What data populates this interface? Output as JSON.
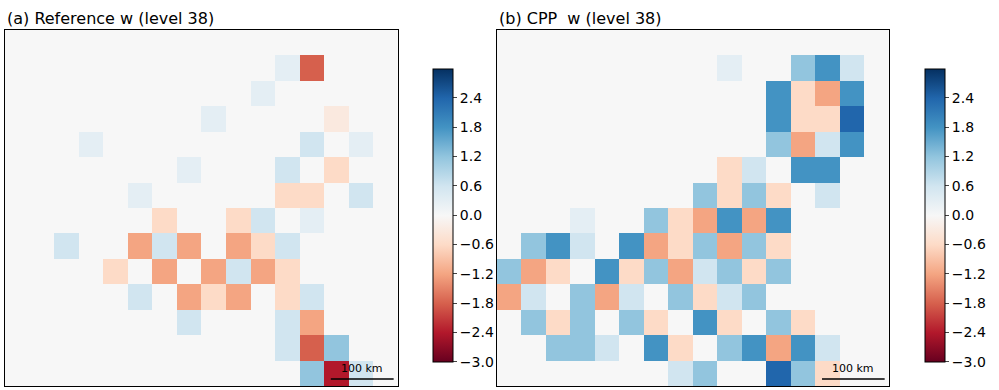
{
  "chart_data": [
    {
      "type": "heatmap",
      "title": "(a) Reference w (level 38)",
      "tick_labels": false,
      "annotations": [
        "100 km"
      ],
      "zlim": [
        -3,
        3
      ],
      "colorbar_ticks": [
        {
          "value": -3,
          "label": "−3.0"
        },
        {
          "value": -2.4,
          "label": "−2.4"
        },
        {
          "value": -1.8,
          "label": "−1.8"
        },
        {
          "value": -1.2,
          "label": "−1.2"
        },
        {
          "value": -0.6,
          "label": "−0.6"
        },
        {
          "value": 0,
          "label": "0.0"
        },
        0.6,
        1.2,
        1.8,
        2.4
      ],
      "z": [
        [
          0,
          0,
          0,
          0,
          0,
          0,
          0,
          0,
          0,
          0,
          0,
          0,
          0,
          0,
          0,
          0
        ],
        [
          0,
          0,
          0,
          0,
          0,
          0,
          0,
          0,
          0,
          0,
          0,
          0.3,
          -1.8,
          0,
          0,
          0
        ],
        [
          0,
          0,
          0,
          0,
          0,
          0,
          0,
          0,
          0,
          0,
          0.3,
          0,
          0,
          0,
          0,
          0
        ],
        [
          0,
          0,
          0,
          0,
          0,
          0,
          0,
          0,
          0.3,
          0,
          0,
          0,
          0,
          -0.3,
          0,
          0
        ],
        [
          0,
          0,
          0,
          0.3,
          0,
          0,
          0,
          0,
          0,
          0,
          0,
          0,
          0.6,
          0,
          0.3,
          0
        ],
        [
          0,
          0,
          0,
          0,
          0,
          0,
          0,
          0.3,
          0,
          0,
          0,
          0.6,
          0,
          -0.6,
          0,
          0
        ],
        [
          0,
          0,
          0,
          0,
          0,
          0.3,
          0,
          0,
          0,
          0,
          0,
          -0.6,
          -0.6,
          0,
          0.6,
          0
        ],
        [
          0,
          0,
          0,
          0,
          0,
          0,
          -0.6,
          0,
          0,
          -0.6,
          0.6,
          0,
          0.3,
          0,
          0,
          0
        ],
        [
          0,
          0,
          0.6,
          0,
          0,
          -1.2,
          0.6,
          -1.2,
          0,
          -1.2,
          -0.6,
          0.6,
          0,
          0,
          0,
          0
        ],
        [
          0,
          0,
          0,
          0,
          -0.6,
          0,
          -1.2,
          0,
          -1.2,
          0.6,
          -1.2,
          -0.6,
          0,
          0,
          0,
          0
        ],
        [
          0,
          0,
          0,
          0,
          0,
          0.6,
          0,
          -1.2,
          -0.6,
          -1.2,
          0,
          -0.6,
          0.6,
          0,
          0,
          0
        ],
        [
          0,
          0,
          0,
          0,
          0,
          0,
          0,
          0.6,
          0,
          0,
          0,
          0.6,
          -1.2,
          0,
          0,
          0
        ],
        [
          0,
          0,
          0,
          0,
          0,
          0,
          0,
          0,
          0,
          0,
          0,
          0.6,
          -1.8,
          1.2,
          0,
          0
        ],
        [
          0,
          0,
          0,
          0,
          0,
          0,
          0,
          0,
          0,
          0,
          0,
          0,
          1.2,
          -2.4,
          0.6,
          0
        ]
      ]
    },
    {
      "type": "heatmap",
      "title": "(b) CPP  w (level 38)",
      "tick_labels": false,
      "annotations": [
        "100 km"
      ],
      "zlim": [
        -3,
        3
      ],
      "colorbar_ticks": [
        {
          "value": -3,
          "label": "−3.0"
        },
        {
          "value": -2.4,
          "label": "−2.4"
        },
        {
          "value": -1.8,
          "label": "−1.8"
        },
        {
          "value": -1.2,
          "label": "−1.2"
        },
        {
          "value": -0.6,
          "label": "−0.6"
        },
        {
          "value": 0,
          "label": "0.0"
        },
        0.6,
        1.2,
        1.8,
        2.4
      ],
      "z": [
        [
          0,
          0,
          0,
          0,
          0,
          0,
          0,
          0,
          0,
          0,
          0,
          0,
          0,
          0,
          0,
          0
        ],
        [
          0,
          0,
          0,
          0,
          0,
          0,
          0,
          0,
          0,
          0.3,
          0,
          0,
          1.2,
          1.8,
          0.6,
          0
        ],
        [
          0,
          0,
          0,
          0,
          0,
          0,
          0,
          0,
          0,
          0,
          0,
          1.8,
          -0.6,
          -1.2,
          1.8,
          0
        ],
        [
          0,
          0,
          0,
          0,
          0,
          0,
          0,
          0,
          0,
          0,
          0,
          1.8,
          -0.6,
          -0.6,
          2.4,
          0
        ],
        [
          0,
          0,
          0,
          0,
          0,
          0,
          0,
          0,
          0,
          0,
          0,
          1.2,
          -1.2,
          0.6,
          1.8,
          0
        ],
        [
          0,
          0,
          0,
          0,
          0,
          0,
          0,
          0,
          0,
          -0.6,
          0.6,
          0,
          1.8,
          1.8,
          0,
          0
        ],
        [
          0,
          0,
          0,
          0,
          0,
          0,
          0,
          0,
          1.2,
          -0.6,
          1.2,
          -0.6,
          0,
          0.6,
          0,
          0
        ],
        [
          0,
          0,
          0,
          0.3,
          0,
          0,
          1.2,
          -0.6,
          -1.2,
          1.8,
          -1.2,
          1.8,
          0,
          0,
          0,
          0
        ],
        [
          0,
          1.2,
          1.8,
          0.6,
          0,
          1.8,
          -1.2,
          -0.6,
          1.2,
          -1.2,
          1.2,
          -0.6,
          0,
          0,
          0,
          0
        ],
        [
          1.2,
          -1.2,
          -0.6,
          0,
          1.8,
          -0.6,
          1.2,
          -1.2,
          0.6,
          1.2,
          -0.6,
          1.2,
          0,
          0,
          0,
          0
        ],
        [
          -1.2,
          0.6,
          0,
          1.2,
          -1.2,
          0.6,
          0,
          1.2,
          -0.6,
          0.6,
          1.2,
          0,
          0,
          0,
          0,
          0
        ],
        [
          0,
          1.2,
          -0.6,
          1.2,
          0,
          1.2,
          -0.6,
          0,
          1.8,
          -0.6,
          0,
          1.2,
          -0.6,
          0,
          0,
          0
        ],
        [
          0,
          0,
          1.2,
          1.2,
          0.6,
          0,
          1.8,
          -0.6,
          0,
          1.2,
          1.8,
          -1.2,
          1.8,
          0.6,
          0,
          0
        ],
        [
          0,
          0,
          0,
          0,
          0,
          0,
          0,
          0.6,
          1.2,
          0,
          0,
          2.4,
          1.2,
          -0.6,
          0,
          0
        ]
      ]
    }
  ]
}
